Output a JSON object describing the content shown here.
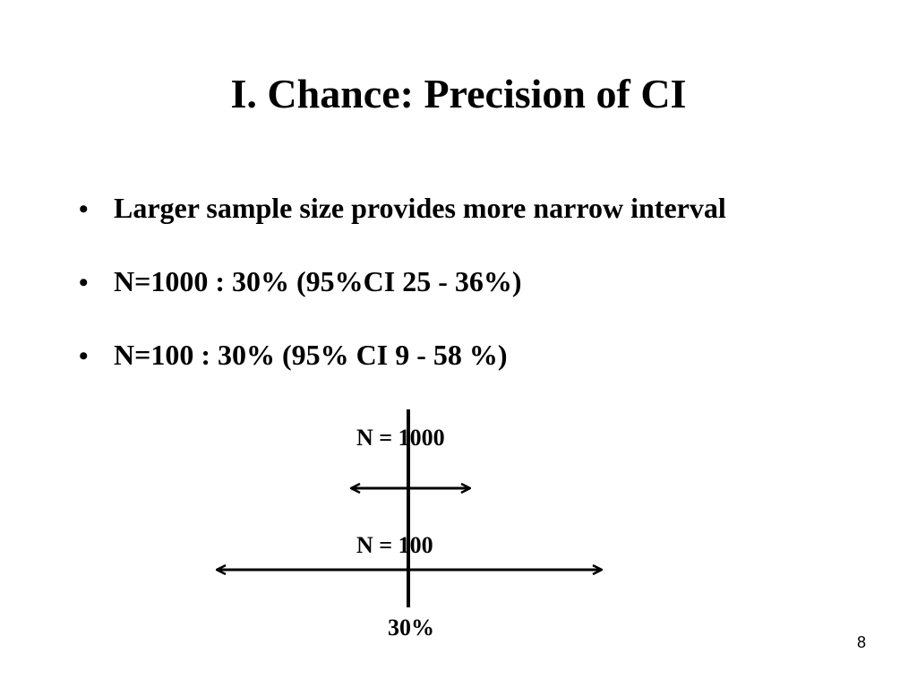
{
  "slide": {
    "title": "I. Chance: Precision of CI",
    "bullets": [
      "Larger sample size provides more narrow interval",
      "N=1000 : 30% (95%CI 25 - 36%)",
      "N=100 : 30% (95% CI 9 - 58 %)"
    ],
    "diagram": {
      "label_top": "N = 1000",
      "label_bottom": "N = 100",
      "label_center": "30%"
    },
    "page_number": "8"
  }
}
